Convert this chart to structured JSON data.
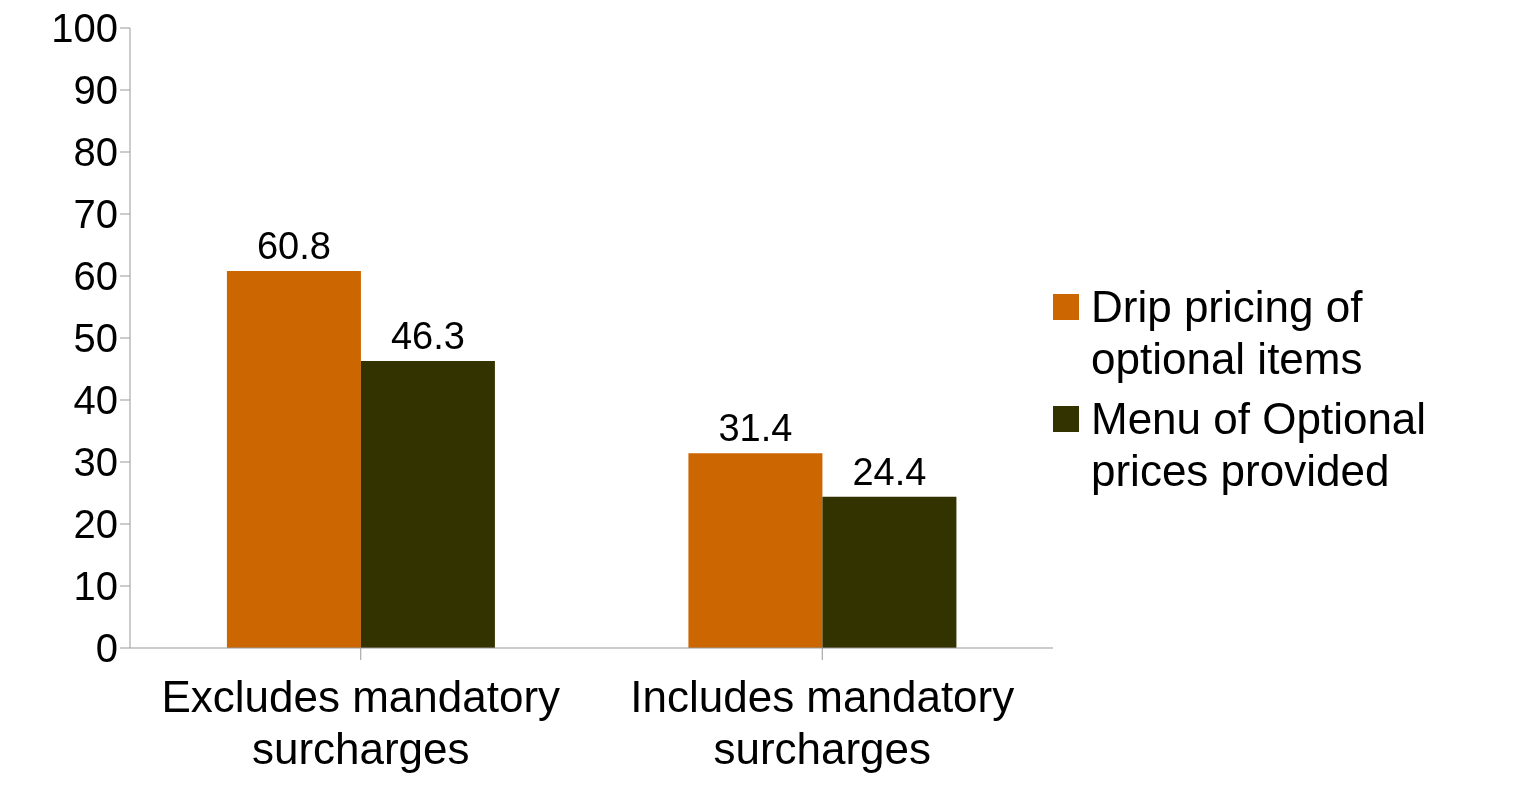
{
  "chart_data": {
    "type": "bar",
    "categories": [
      "Excludes mandatory surcharges",
      "Includes mandatory surcharges"
    ],
    "series": [
      {
        "name": "Drip pricing of optional items",
        "color": "#cc6600",
        "values": [
          60.8,
          31.4
        ]
      },
      {
        "name": "Menu of Optional prices provided",
        "color": "#333300",
        "values": [
          46.3,
          24.4
        ]
      }
    ],
    "ylim": [
      0,
      100
    ],
    "yticks": [
      0,
      10,
      20,
      30,
      40,
      50,
      60,
      70,
      80,
      90,
      100
    ],
    "legend": "right",
    "data_labels": true
  }
}
